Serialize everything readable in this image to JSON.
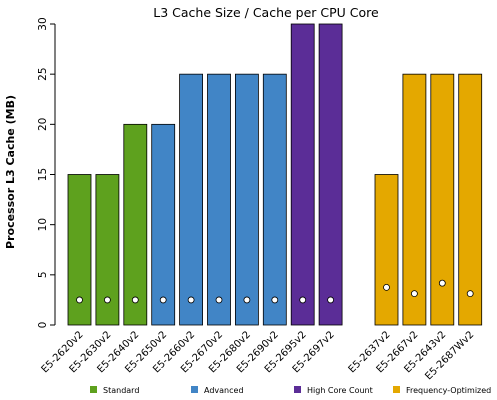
{
  "chart_data": {
    "type": "bar",
    "title": "L3 Cache Size / Cache per CPU Core",
    "ylabel": "Processor L3 Cache (MB)",
    "xlabel": "",
    "ylim": [
      0,
      30
    ],
    "yticks": [
      0,
      5,
      10,
      15,
      20,
      25,
      30
    ],
    "grid": false,
    "legend_position": "bottom",
    "categories": [
      "E5-2620v2",
      "E5-2630v2",
      "E5-2640v2",
      "E5-2650v2",
      "E5-2660v2",
      "E5-2670v2",
      "E5-2680v2",
      "E5-2690v2",
      "E5-2695v2",
      "E5-2697v2",
      "E5-2637v2",
      "E5-2667v2",
      "E5-2643v2",
      "E5-2687Wv2"
    ],
    "values": [
      15,
      15,
      20,
      20,
      25,
      25,
      25,
      25,
      30,
      30,
      15,
      25,
      25,
      25
    ],
    "cache_per_core": [
      2.5,
      2.5,
      2.5,
      2.5,
      2.5,
      2.5,
      2.5,
      2.5,
      2.5,
      2.5,
      3.75,
      3.125,
      4.17,
      3.125
    ],
    "groups": [
      "Standard",
      "Standard",
      "Standard",
      "Advanced",
      "Advanced",
      "Advanced",
      "Advanced",
      "Advanced",
      "High Core Count",
      "High Core Count",
      "Frequency-Optimized",
      "Frequency-Optimized",
      "Frequency-Optimized",
      "Frequency-Optimized"
    ],
    "legend": [
      {
        "name": "Standard",
        "color": "#5ea11e"
      },
      {
        "name": "Advanced",
        "color": "#4185c6"
      },
      {
        "name": "High Core Count",
        "color": "#5b2d97"
      },
      {
        "name": "Frequency-Optimized",
        "color": "#e4a800"
      }
    ]
  }
}
